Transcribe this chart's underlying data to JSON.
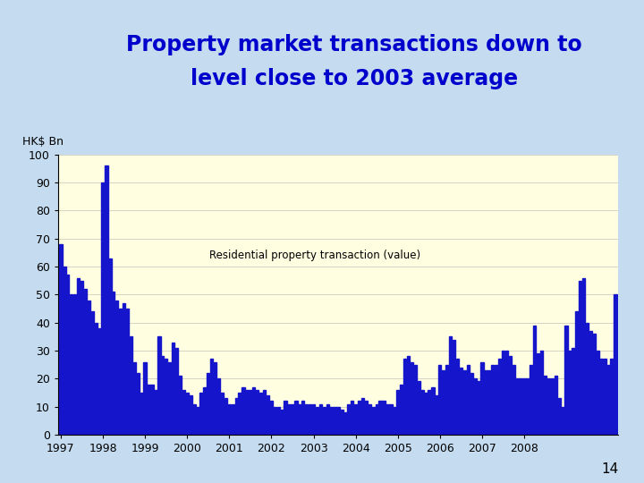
{
  "title_line1": "Property market transactions down to",
  "title_line2": "level close to 2003 average",
  "ylabel_label": "HK$ Bn",
  "bar_color": "#1515CC",
  "bg_color": "#FFFEE0",
  "outer_bg": "#C5DCF0",
  "annotation": "Residential property transaction (value)",
  "yticks": [
    0,
    10,
    20,
    30,
    40,
    50,
    60,
    70,
    80,
    90,
    100
  ],
  "ylim": [
    0,
    100
  ],
  "values": [
    68,
    60,
    57,
    50,
    50,
    56,
    55,
    52,
    48,
    44,
    40,
    38,
    90,
    96,
    63,
    51,
    48,
    45,
    47,
    45,
    35,
    26,
    22,
    15,
    26,
    18,
    18,
    16,
    35,
    28,
    27,
    26,
    33,
    31,
    21,
    16,
    15,
    14,
    11,
    10,
    15,
    17,
    22,
    27,
    26,
    20,
    15,
    13,
    11,
    11,
    13,
    15,
    17,
    16,
    16,
    17,
    16,
    15,
    16,
    14,
    12,
    10,
    10,
    9,
    12,
    11,
    11,
    12,
    11,
    12,
    11,
    11,
    11,
    10,
    11,
    10,
    11,
    10,
    10,
    10,
    9,
    8,
    11,
    12,
    11,
    12,
    13,
    12,
    11,
    10,
    11,
    12,
    12,
    11,
    11,
    10,
    16,
    18,
    27,
    28,
    26,
    25,
    19,
    16,
    15,
    16,
    17,
    14,
    25,
    23,
    25,
    35,
    34,
    27,
    24,
    23,
    25,
    22,
    20,
    19,
    26,
    23,
    23,
    25,
    25,
    27,
    30,
    30,
    28,
    25,
    20,
    20,
    20,
    20,
    25,
    39,
    29,
    30,
    21,
    20,
    20,
    21,
    13,
    10,
    39,
    30,
    31,
    44,
    55,
    56,
    40,
    37,
    36,
    30,
    27,
    27,
    25,
    27,
    50
  ],
  "title_color": "#0000CC",
  "title_fontsize": 17,
  "page_number": "14"
}
